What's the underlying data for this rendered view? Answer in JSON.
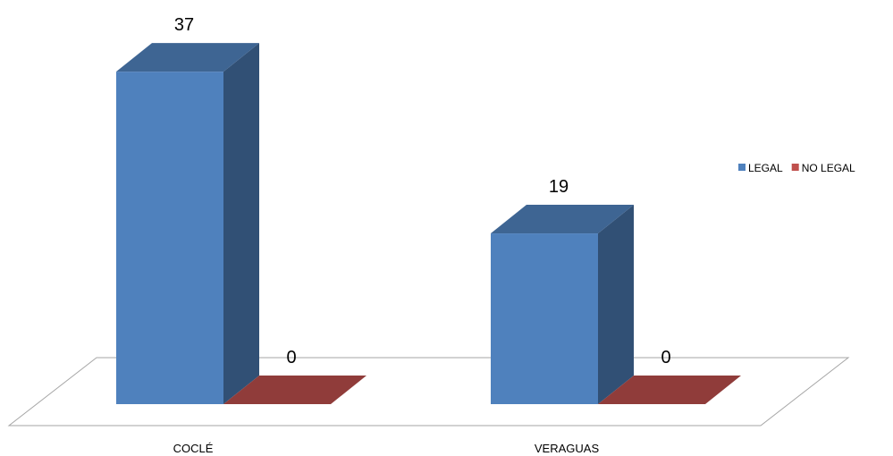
{
  "chart_data": {
    "type": "bar",
    "style": "3d-clustered-column",
    "categories": [
      "COCLÉ",
      "VERAGUAS"
    ],
    "series": [
      {
        "name": "LEGAL",
        "values": [
          37,
          19
        ],
        "color": "#4f81bd"
      },
      {
        "name": "NO LEGAL",
        "values": [
          0,
          0
        ],
        "color": "#c0504d"
      }
    ],
    "data_labels": true,
    "legend": "right",
    "grid": false,
    "ylim": [
      0,
      37
    ]
  }
}
